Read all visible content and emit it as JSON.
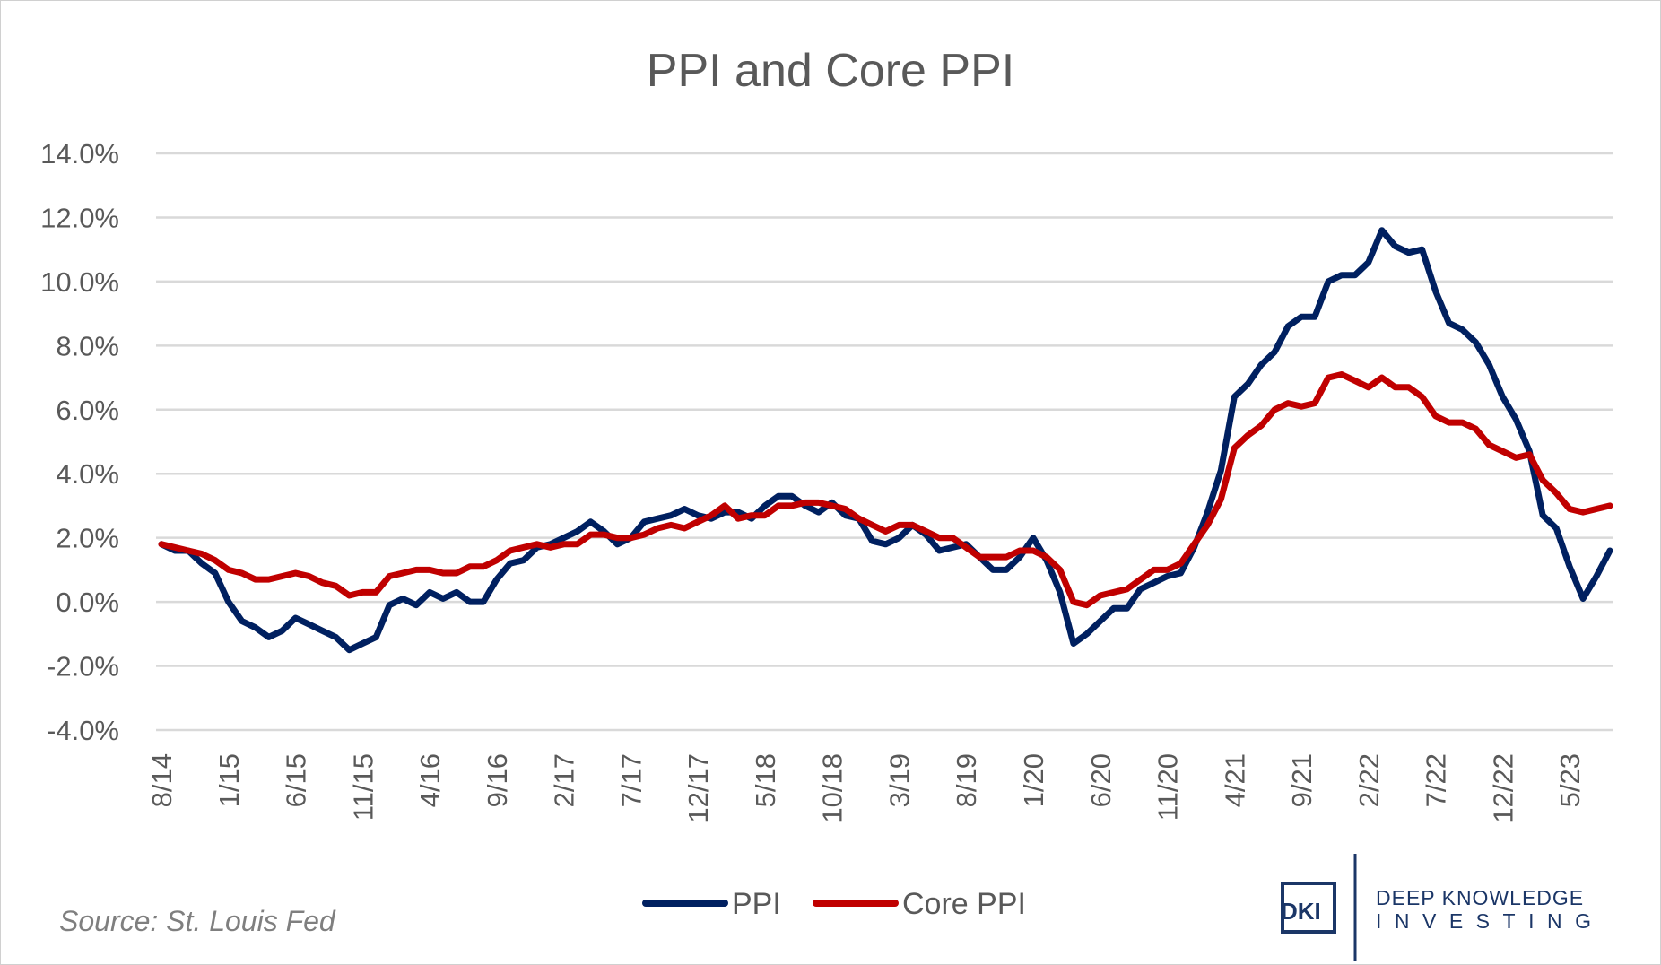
{
  "chart_data": {
    "type": "line",
    "title": "PPI and Core PPI",
    "xlabel": "",
    "ylabel": "",
    "start_month": "8/14",
    "x_tick_labels": [
      "8/14",
      "1/15",
      "6/15",
      "11/15",
      "4/16",
      "9/16",
      "2/17",
      "7/17",
      "12/17",
      "5/18",
      "10/18",
      "3/19",
      "8/19",
      "1/20",
      "6/20",
      "11/20",
      "4/21",
      "9/21",
      "2/22",
      "7/22",
      "12/22",
      "5/23"
    ],
    "y_tick_labels": [
      "14.0%",
      "12.0%",
      "10.0%",
      "8.0%",
      "6.0%",
      "4.0%",
      "2.0%",
      "0.0%",
      "-2.0%",
      "-4.0%"
    ],
    "ylim": [
      -4,
      14
    ],
    "grid": true,
    "legend_placement": "bottom",
    "series": [
      {
        "name": "PPI",
        "color": "#002060",
        "values": [
          1.8,
          1.6,
          1.6,
          1.2,
          0.9,
          0.0,
          -0.6,
          -0.8,
          -1.1,
          -0.9,
          -0.5,
          -0.7,
          -0.9,
          -1.1,
          -1.5,
          -1.3,
          -1.1,
          -0.1,
          0.1,
          -0.1,
          0.3,
          0.1,
          0.3,
          0.0,
          0.0,
          0.7,
          1.2,
          1.3,
          1.7,
          1.8,
          2.0,
          2.2,
          2.5,
          2.2,
          1.8,
          2.0,
          2.5,
          2.6,
          2.7,
          2.9,
          2.7,
          2.6,
          2.8,
          2.8,
          2.6,
          3.0,
          3.3,
          3.3,
          3.0,
          2.8,
          3.1,
          2.7,
          2.6,
          1.9,
          1.8,
          2.0,
          2.4,
          2.1,
          1.6,
          1.7,
          1.8,
          1.4,
          1.0,
          1.0,
          1.4,
          2.0,
          1.3,
          0.3,
          -1.3,
          -1.0,
          -0.6,
          -0.2,
          -0.2,
          0.4,
          0.6,
          0.8,
          0.9,
          1.7,
          2.8,
          4.1,
          6.4,
          6.8,
          7.4,
          7.8,
          8.6,
          8.9,
          8.9,
          10.0,
          10.2,
          10.2,
          10.6,
          11.6,
          11.1,
          10.9,
          11.0,
          9.7,
          8.7,
          8.5,
          8.1,
          7.4,
          6.4,
          5.7,
          4.7,
          2.7,
          2.3,
          1.1,
          0.1,
          0.8,
          1.6
        ]
      },
      {
        "name": "Core PPI",
        "color": "#c00000",
        "values": [
          1.8,
          1.7,
          1.6,
          1.5,
          1.3,
          1.0,
          0.9,
          0.7,
          0.7,
          0.8,
          0.9,
          0.8,
          0.6,
          0.5,
          0.2,
          0.3,
          0.3,
          0.8,
          0.9,
          1.0,
          1.0,
          0.9,
          0.9,
          1.1,
          1.1,
          1.3,
          1.6,
          1.7,
          1.8,
          1.7,
          1.8,
          1.8,
          2.1,
          2.1,
          2.0,
          2.0,
          2.1,
          2.3,
          2.4,
          2.3,
          2.5,
          2.7,
          3.0,
          2.6,
          2.7,
          2.7,
          3.0,
          3.0,
          3.1,
          3.1,
          3.0,
          2.9,
          2.6,
          2.4,
          2.2,
          2.4,
          2.4,
          2.2,
          2.0,
          2.0,
          1.7,
          1.4,
          1.4,
          1.4,
          1.6,
          1.6,
          1.4,
          1.0,
          0.0,
          -0.1,
          0.2,
          0.3,
          0.4,
          0.7,
          1.0,
          1.0,
          1.2,
          1.8,
          2.4,
          3.2,
          4.8,
          5.2,
          5.5,
          6.0,
          6.2,
          6.1,
          6.2,
          7.0,
          7.1,
          6.9,
          6.7,
          7.0,
          6.7,
          6.7,
          6.4,
          5.8,
          5.6,
          5.6,
          5.4,
          4.9,
          4.7,
          4.5,
          4.6,
          3.8,
          3.4,
          2.9,
          2.8,
          2.9,
          3.0
        ]
      }
    ]
  },
  "source": "Source: St. Louis Fed",
  "logo": {
    "mark": "DKI",
    "line1": "DEEP KNOWLEDGE",
    "line2": "INVESTING",
    "color": "#1b3667"
  }
}
